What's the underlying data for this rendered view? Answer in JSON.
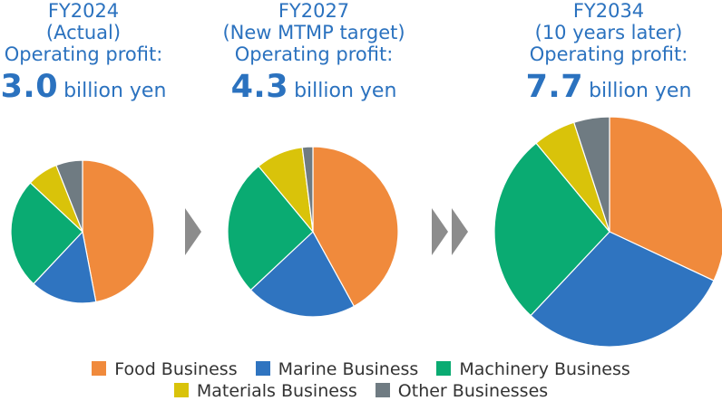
{
  "colors": {
    "food": "#f08a3c",
    "marine": "#2f74c0",
    "machinery": "#0aab72",
    "materials": "#d9c30a",
    "other": "#6f7b82",
    "text_blue": "#2b72bf",
    "arrow": "#8c8c8c"
  },
  "chart_data": [
    {
      "type": "pie",
      "title_lines": [
        "FY2024",
        "(Actual)",
        "Operating profit:"
      ],
      "profit_value": "3.0",
      "profit_unit": "billion yen",
      "labels": [
        "Food Business",
        "Marine Business",
        "Machinery Business",
        "Materials Business",
        "Other Businesses"
      ],
      "values": [
        47,
        15,
        25,
        7,
        6
      ]
    },
    {
      "type": "pie",
      "title_lines": [
        "FY2027",
        "(New MTMP target)",
        "Operating profit:"
      ],
      "profit_value": "4.3",
      "profit_unit": "billion yen",
      "labels": [
        "Food Business",
        "Marine Business",
        "Machinery Business",
        "Materials Business",
        "Other Businesses"
      ],
      "values": [
        42,
        21,
        26,
        9,
        2
      ]
    },
    {
      "type": "pie",
      "title_lines": [
        "FY2034",
        "(10 years later)",
        "Operating profit:"
      ],
      "profit_value": "7.7",
      "profit_unit": "billion yen",
      "labels": [
        "Food Business",
        "Marine Business",
        "Machinery Business",
        "Materials Business",
        "Other Businesses"
      ],
      "values": [
        32,
        30,
        27,
        6,
        5
      ]
    }
  ],
  "legend": [
    {
      "label": "Food Business",
      "color": "#f08a3c"
    },
    {
      "label": "Marine Business",
      "color": "#2f74c0"
    },
    {
      "label": "Machinery Business",
      "color": "#0aab72"
    },
    {
      "label": "Materials Business",
      "color": "#d9c30a"
    },
    {
      "label": "Other Businesses",
      "color": "#6f7b82"
    }
  ]
}
